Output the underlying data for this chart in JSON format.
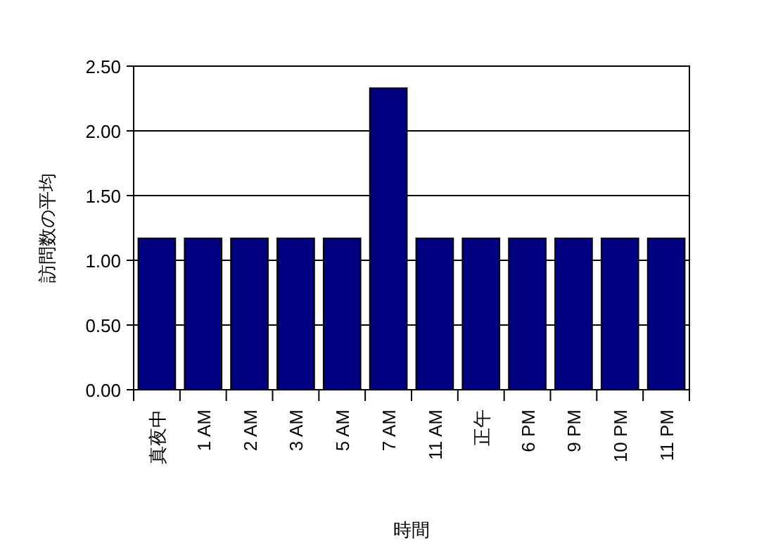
{
  "chart_data": {
    "type": "bar",
    "xlabel": "時間",
    "ylabel": "訪問数の平均",
    "color": "#000080",
    "grid": "y",
    "categories": [
      "真夜中",
      "1 AM",
      "2 AM",
      "3 AM",
      "5 AM",
      "7 AM",
      "11 AM",
      "正午",
      "6 PM",
      "9 PM",
      "10 PM",
      "11 PM"
    ],
    "values": [
      1.17,
      1.17,
      1.17,
      1.17,
      1.17,
      2.33,
      1.17,
      1.17,
      1.17,
      1.17,
      1.17,
      1.17
    ],
    "ylim": [
      0,
      2.5
    ],
    "yticks": [
      {
        "value": 0,
        "label": "0.00"
      },
      {
        "value": 0.5,
        "label": "0.50"
      },
      {
        "value": 1,
        "label": "1.00"
      },
      {
        "value": 1.5,
        "label": "1.50"
      },
      {
        "value": 2,
        "label": "2.00"
      },
      {
        "value": 2.5,
        "label": "2.50"
      }
    ]
  }
}
